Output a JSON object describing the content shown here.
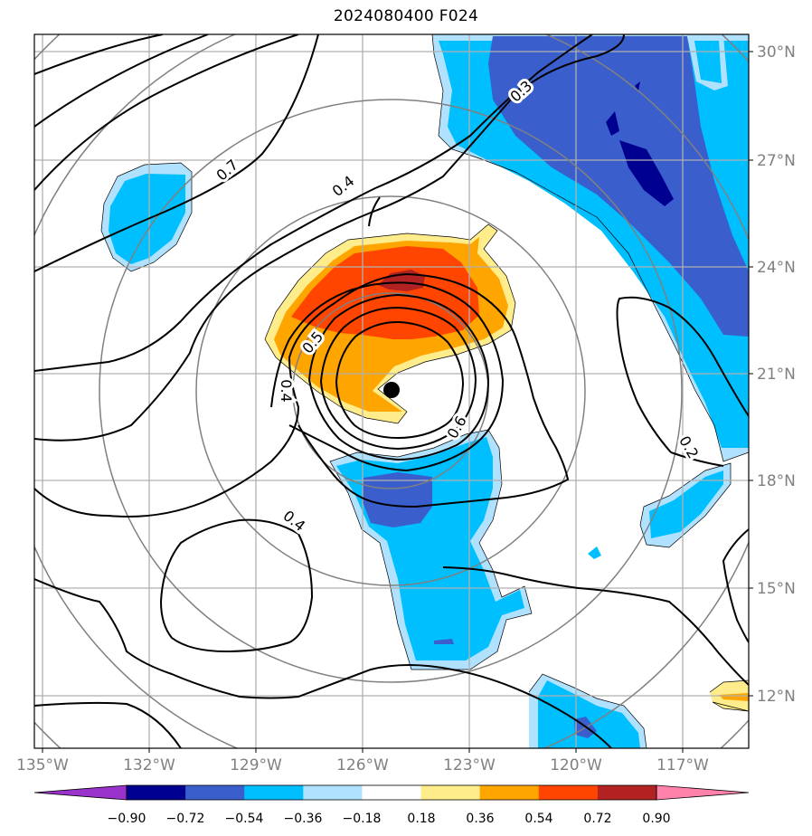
{
  "title": "2024080400 F024",
  "longitude_labels": [
    "135°W",
    "132°W",
    "129°W",
    "126°W",
    "123°W",
    "120°W",
    "117°W"
  ],
  "latitude_labels": [
    "30°N",
    "27°N",
    "24°N",
    "21°N",
    "18°N",
    "15°N",
    "12°N"
  ],
  "contour_labels": [
    "0.7",
    "0.4",
    "0.3",
    "0.5",
    "0.4",
    "0.6",
    "0.4",
    "0.2"
  ],
  "colorbar": {
    "labels": [
      "−0.90",
      "−0.72",
      "−0.54",
      "−0.36",
      "−0.18",
      "0.18",
      "0.36",
      "0.54",
      "0.72",
      "0.90"
    ],
    "colors": [
      "#9933cc",
      "#000090",
      "#3a5fcd",
      "#00bfff",
      "#b0e2ff",
      "#ffffff",
      "#ffec8b",
      "#ffa500",
      "#ff4500",
      "#b22222",
      "#ff82ab"
    ]
  },
  "colors": {
    "strong_negative": "#000090",
    "moderate_negative": "#3a5fcd",
    "weak_negative": "#00bfff",
    "faint_negative": "#b0e2ff",
    "faint_positive": "#ffec8b",
    "weak_positive": "#ffa500",
    "moderate_positive": "#ff4500",
    "strong_positive": "#b22222",
    "range_rings": "#808080",
    "gridlines": "#b0b0b0",
    "contours": "#000000"
  },
  "storm_center": {
    "lat": 20.5,
    "lon": -125.1
  }
}
